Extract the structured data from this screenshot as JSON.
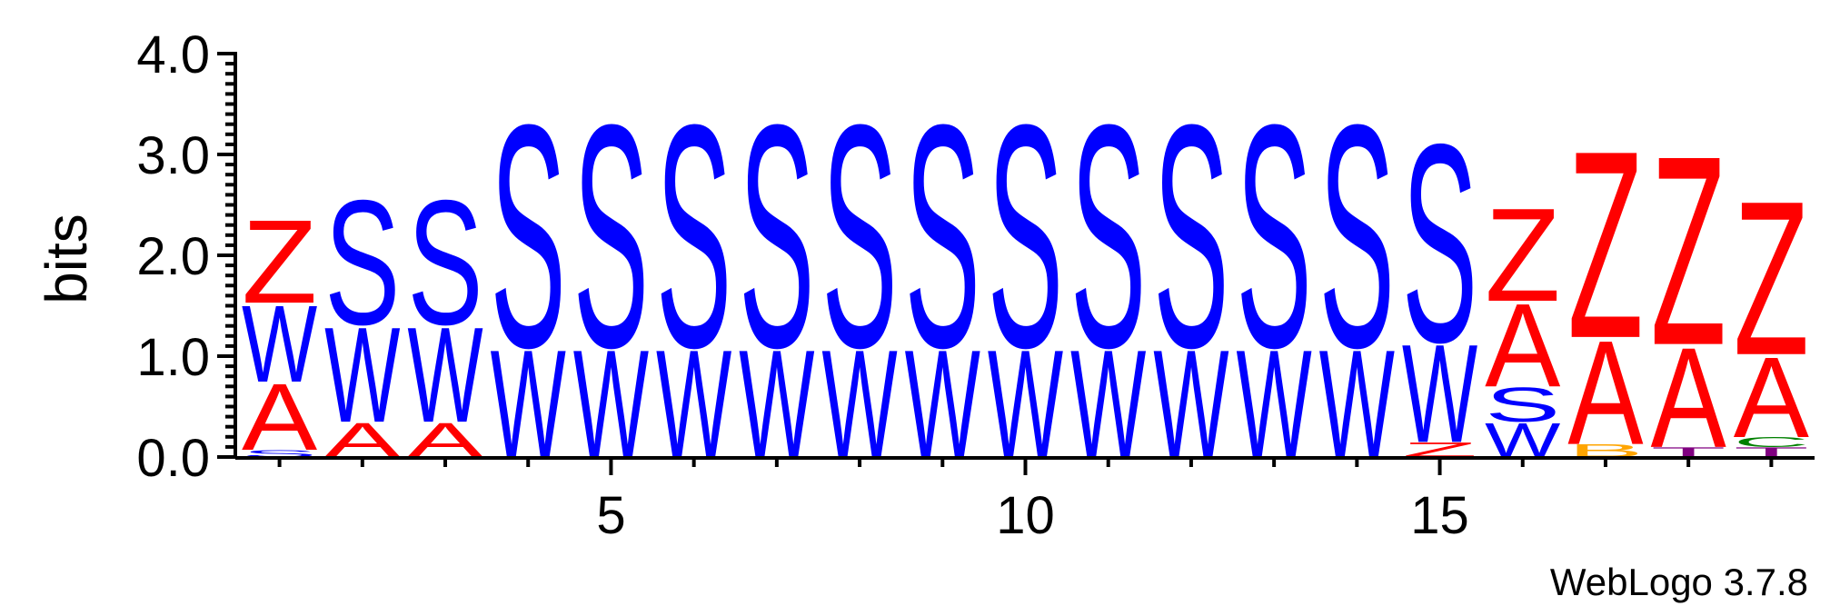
{
  "chart_data": {
    "type": "sequence-logo",
    "ylabel": "bits",
    "ylim": [
      0,
      4
    ],
    "y_ticks": [
      "0.0",
      "1.0",
      "2.0",
      "3.0",
      "4.0"
    ],
    "x_ticks": [
      {
        "position": 5,
        "label": "5"
      },
      {
        "position": 10,
        "label": "10"
      },
      {
        "position": 15,
        "label": "15"
      }
    ],
    "positions": 19,
    "colors": {
      "Z": "#ff0000",
      "A": "#ff0000",
      "W": "#0000ff",
      "S": "#0000ff",
      "B": "#ffa500",
      "T": "#800080",
      "C": "#008000"
    },
    "columns": [
      {
        "position": 1,
        "stack": [
          {
            "letter": "S",
            "bits": 0.07
          },
          {
            "letter": "A",
            "bits": 0.68
          },
          {
            "letter": "W",
            "bits": 0.78
          },
          {
            "letter": "Z",
            "bits": 0.85
          }
        ]
      },
      {
        "position": 2,
        "stack": [
          {
            "letter": "A",
            "bits": 0.35
          },
          {
            "letter": "W",
            "bits": 0.97
          },
          {
            "letter": "S",
            "bits": 1.27
          }
        ]
      },
      {
        "position": 3,
        "stack": [
          {
            "letter": "A",
            "bits": 0.35
          },
          {
            "letter": "W",
            "bits": 0.97
          },
          {
            "letter": "S",
            "bits": 1.27
          }
        ]
      },
      {
        "position": 4,
        "stack": [
          {
            "letter": "W",
            "bits": 1.1
          },
          {
            "letter": "S",
            "bits": 2.27
          }
        ]
      },
      {
        "position": 5,
        "stack": [
          {
            "letter": "W",
            "bits": 1.1
          },
          {
            "letter": "S",
            "bits": 2.27
          }
        ]
      },
      {
        "position": 6,
        "stack": [
          {
            "letter": "W",
            "bits": 1.1
          },
          {
            "letter": "S",
            "bits": 2.27
          }
        ]
      },
      {
        "position": 7,
        "stack": [
          {
            "letter": "W",
            "bits": 1.1
          },
          {
            "letter": "S",
            "bits": 2.27
          }
        ]
      },
      {
        "position": 8,
        "stack": [
          {
            "letter": "W",
            "bits": 1.1
          },
          {
            "letter": "S",
            "bits": 2.27
          }
        ]
      },
      {
        "position": 9,
        "stack": [
          {
            "letter": "W",
            "bits": 1.1
          },
          {
            "letter": "S",
            "bits": 2.27
          }
        ]
      },
      {
        "position": 10,
        "stack": [
          {
            "letter": "W",
            "bits": 1.1
          },
          {
            "letter": "S",
            "bits": 2.27
          }
        ]
      },
      {
        "position": 11,
        "stack": [
          {
            "letter": "W",
            "bits": 1.1
          },
          {
            "letter": "S",
            "bits": 2.27
          }
        ]
      },
      {
        "position": 12,
        "stack": [
          {
            "letter": "W",
            "bits": 1.1
          },
          {
            "letter": "S",
            "bits": 2.27
          }
        ]
      },
      {
        "position": 13,
        "stack": [
          {
            "letter": "W",
            "bits": 1.1
          },
          {
            "letter": "S",
            "bits": 2.27
          }
        ]
      },
      {
        "position": 14,
        "stack": [
          {
            "letter": "W",
            "bits": 1.1
          },
          {
            "letter": "S",
            "bits": 2.27
          }
        ]
      },
      {
        "position": 15,
        "stack": [
          {
            "letter": "Z",
            "bits": 0.15
          },
          {
            "letter": "W",
            "bits": 1.0
          },
          {
            "letter": "S",
            "bits": 2.02
          }
        ]
      },
      {
        "position": 16,
        "stack": [
          {
            "letter": "W",
            "bits": 0.35
          },
          {
            "letter": "S",
            "bits": 0.35
          },
          {
            "letter": "A",
            "bits": 0.85
          },
          {
            "letter": "Z",
            "bits": 0.95
          }
        ]
      },
      {
        "position": 17,
        "stack": [
          {
            "letter": "B",
            "bits": 0.13
          },
          {
            "letter": "A",
            "bits": 1.06
          },
          {
            "letter": "Z",
            "bits": 1.91
          }
        ]
      },
      {
        "position": 18,
        "stack": [
          {
            "letter": "T",
            "bits": 0.1
          },
          {
            "letter": "A",
            "bits": 1.02
          },
          {
            "letter": "Z",
            "bits": 1.93
          }
        ]
      },
      {
        "position": 19,
        "stack": [
          {
            "letter": "T",
            "bits": 0.1
          },
          {
            "letter": "C",
            "bits": 0.1
          },
          {
            "letter": "A",
            "bits": 0.82
          },
          {
            "letter": "Z",
            "bits": 1.57
          }
        ]
      }
    ]
  },
  "footer": {
    "credit": "WebLogo 3.7.8"
  }
}
